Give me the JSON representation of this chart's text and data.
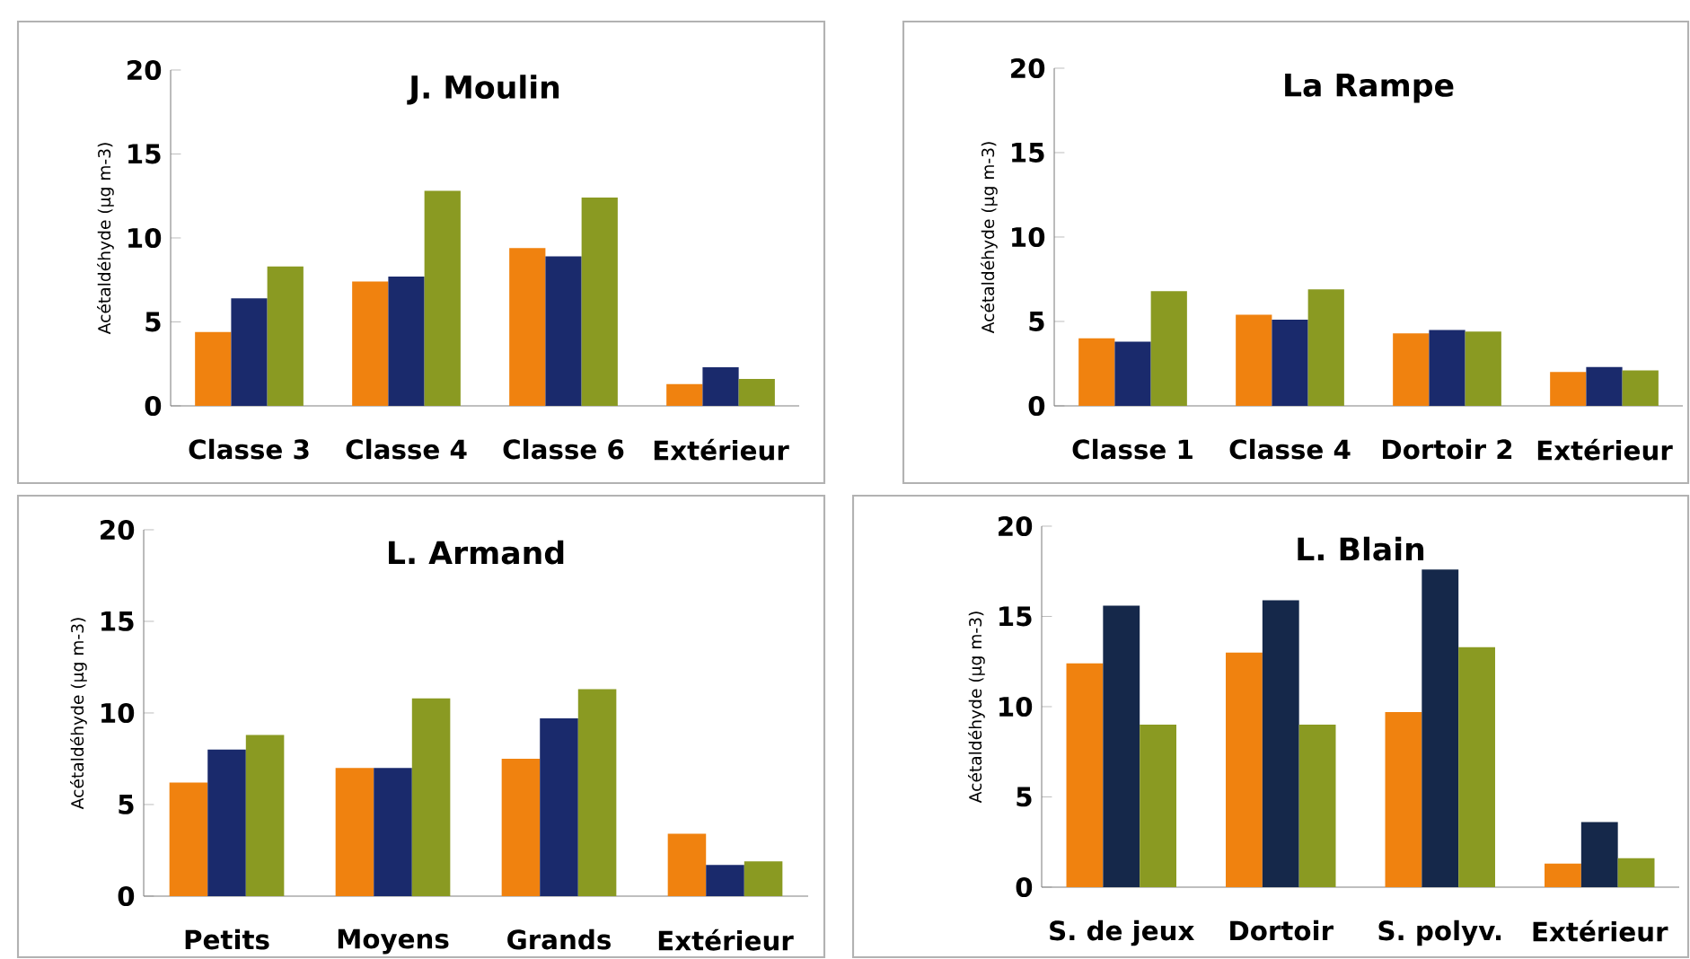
{
  "chart_data": [
    {
      "type": "bar",
      "title": "J. Moulin",
      "ylabel": "Acétaldéhyde (µg m-3)",
      "categories": [
        "Classe 3",
        "Classe 4",
        "Classe 6",
        "Extérieur"
      ],
      "ylim": [
        0,
        20
      ],
      "yticks": [
        0,
        5,
        10,
        15,
        20
      ],
      "series": [
        {
          "color": "#f0820f",
          "values": [
            4.4,
            7.4,
            9.4,
            1.3
          ]
        },
        {
          "color": "#1a2a6c",
          "values": [
            6.4,
            7.7,
            8.9,
            2.3
          ]
        },
        {
          "color": "#8a9a22",
          "values": [
            8.3,
            12.8,
            12.4,
            1.6
          ]
        }
      ]
    },
    {
      "type": "bar",
      "title": "La Rampe",
      "ylabel": "Acétaldéhyde (µg m-3)",
      "categories": [
        "Classe 1",
        "Classe 4",
        "Dortoir 2",
        "Extérieur"
      ],
      "ylim": [
        0,
        20
      ],
      "yticks": [
        0,
        5,
        10,
        15,
        20
      ],
      "series": [
        {
          "color": "#f0820f",
          "values": [
            4.0,
            5.4,
            4.3,
            2.0
          ]
        },
        {
          "color": "#1a2a6c",
          "values": [
            3.8,
            5.1,
            4.5,
            2.3
          ]
        },
        {
          "color": "#8a9a22",
          "values": [
            6.8,
            6.9,
            4.4,
            2.1
          ]
        }
      ]
    },
    {
      "type": "bar",
      "title": "L. Armand",
      "ylabel": "Acétaldéhyde (µg m-3)",
      "categories": [
        "Petits",
        "Moyens",
        "Grands",
        "Extérieur"
      ],
      "ylim": [
        0,
        20
      ],
      "yticks": [
        0,
        5,
        10,
        15,
        20
      ],
      "series": [
        {
          "color": "#f0820f",
          "values": [
            6.2,
            7.0,
            7.5,
            3.4
          ]
        },
        {
          "color": "#1a2a6c",
          "values": [
            8.0,
            7.0,
            9.7,
            1.7
          ]
        },
        {
          "color": "#8a9a22",
          "values": [
            8.8,
            10.8,
            11.3,
            1.9
          ]
        }
      ]
    },
    {
      "type": "bar",
      "title": "L. Blain",
      "ylabel": "Acétaldéhyde (µg m-3)",
      "categories": [
        "S. de jeux",
        "Dortoir",
        "S. polyv.",
        "Extérieur"
      ],
      "ylim": [
        0,
        20
      ],
      "yticks": [
        0,
        5,
        10,
        15,
        20
      ],
      "series": [
        {
          "color": "#f0820f",
          "values": [
            12.4,
            13.0,
            9.7,
            1.3
          ]
        },
        {
          "color": "#15284a",
          "values": [
            15.6,
            15.9,
            17.6,
            3.6
          ]
        },
        {
          "color": "#8a9a22",
          "values": [
            9.0,
            9.0,
            13.3,
            1.6
          ]
        }
      ]
    }
  ]
}
